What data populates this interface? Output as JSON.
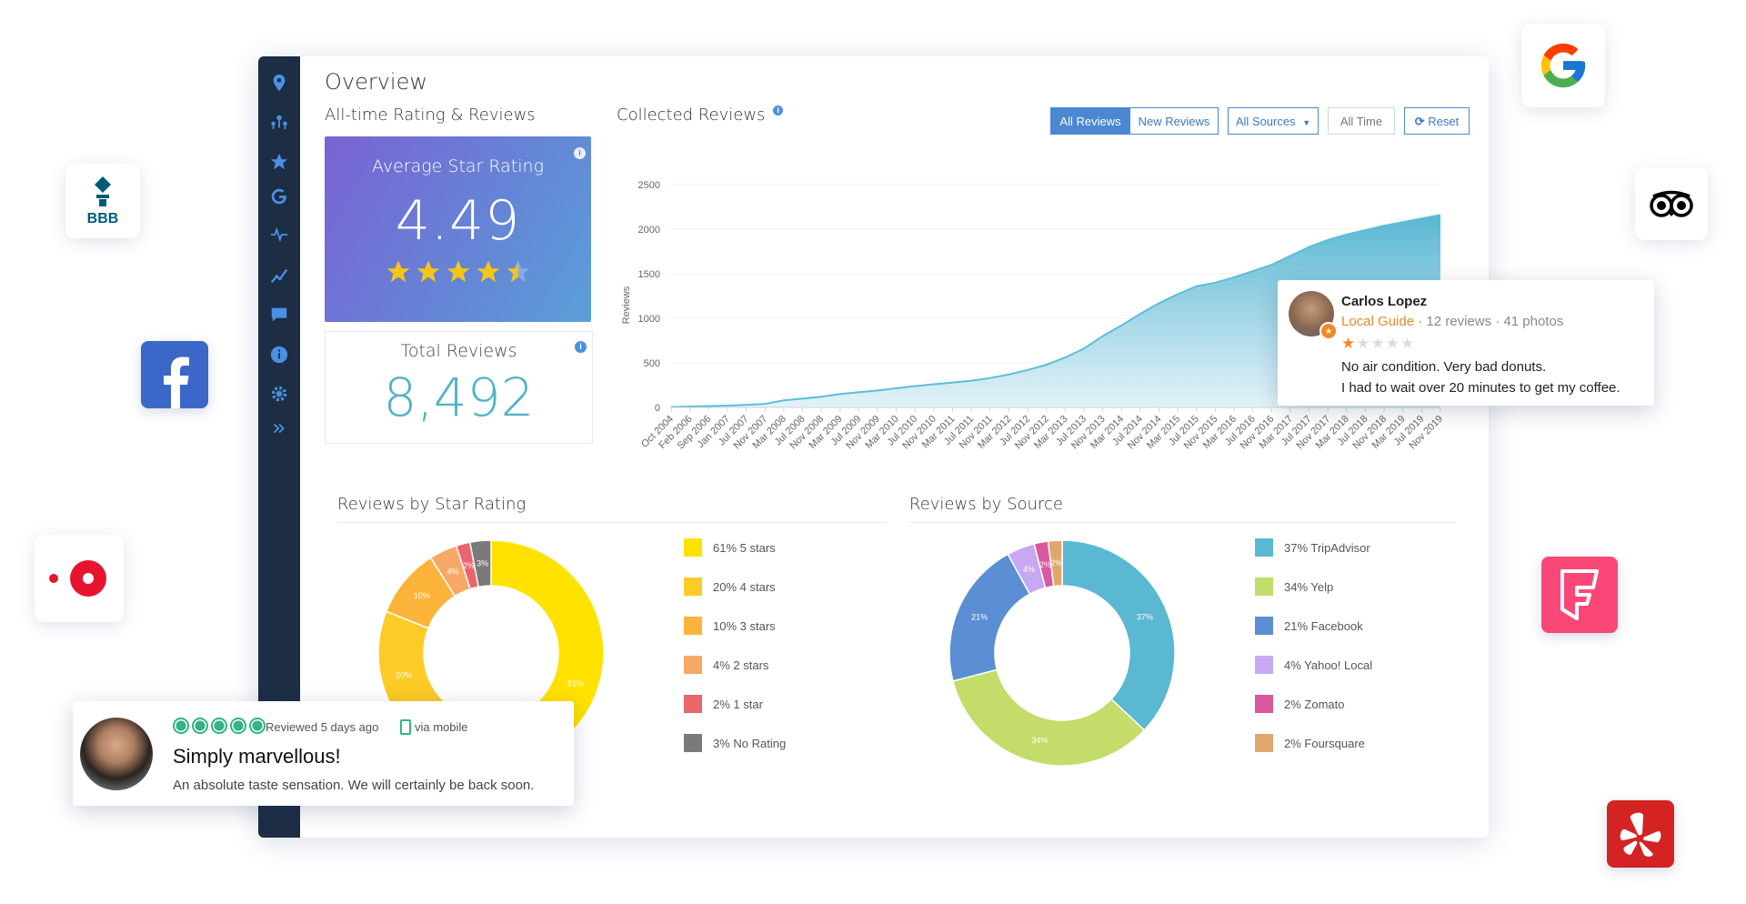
{
  "page": {
    "title": "Overview"
  },
  "sidebar": {
    "icons": [
      "map-pin-icon",
      "locations-icon",
      "star-icon",
      "google-icon",
      "pulse-icon",
      "trend-icon",
      "chat-icon",
      "info-icon",
      "gear-icon",
      "expand-icon"
    ]
  },
  "rating_section": {
    "title": "All-time Rating & Reviews",
    "average_label": "Average Star Rating",
    "average_value": "4.49",
    "stars_value": 4.49,
    "total_label": "Total Reviews",
    "total_value": "8,492"
  },
  "collected": {
    "title": "Collected Reviews",
    "buttons": {
      "all_reviews": "All Reviews",
      "new_reviews": "New Reviews",
      "all_sources": "All Sources",
      "all_time": "All Time",
      "reset": "Reset"
    }
  },
  "star_section": {
    "title": "Reviews by Star Rating"
  },
  "source_section": {
    "title": "Reviews by Source"
  },
  "chart_data": [
    {
      "type": "area",
      "title": "Collected Reviews",
      "ylabel": "Reviews",
      "ylim": [
        0,
        2500
      ],
      "yticks": [
        2500,
        2000,
        1500,
        1000,
        500,
        0
      ],
      "xticks": [
        "Oct 2004",
        "Feb 2006",
        "Sep 2006",
        "Jan 2007",
        "Jul 2007",
        "Nov 2007",
        "Mar 2008",
        "Jul 2008",
        "Nov 2008",
        "Mar 2009",
        "Jul 2009",
        "Nov 2009",
        "Mar 2010",
        "Jul 2010",
        "Nov 2010",
        "Mar 2011",
        "Jul 2011",
        "Nov 2011",
        "Mar 2012",
        "Jul 2012",
        "Nov 2012",
        "Mar 2013",
        "Jul 2013",
        "Nov 2013",
        "Mar 2014",
        "Jul 2014",
        "Nov 2014",
        "Mar 2015",
        "Jul 2015",
        "Nov 2015",
        "Mar 2016",
        "Jul 2016",
        "Nov 2016",
        "Mar 2017",
        "Jul 2017",
        "Nov 2017",
        "Mar 2018",
        "Jul 2018",
        "Nov 2018",
        "Mar 2019",
        "Jul 2019",
        "Nov 2019"
      ],
      "values": [
        5,
        10,
        15,
        20,
        30,
        40,
        80,
        100,
        120,
        150,
        170,
        190,
        215,
        240,
        260,
        280,
        300,
        330,
        370,
        420,
        480,
        560,
        660,
        800,
        920,
        1050,
        1170,
        1270,
        1360,
        1400,
        1460,
        1530,
        1600,
        1700,
        1800,
        1880,
        1940,
        1990,
        2040,
        2080,
        2120,
        2160
      ],
      "color": "#5bbfd6"
    },
    {
      "type": "pie",
      "title": "Reviews by Star Rating",
      "labels": [
        "5 stars",
        "4 stars",
        "3 stars",
        "2 stars",
        "1 star",
        "No Rating"
      ],
      "values": [
        61,
        20,
        10,
        4,
        2,
        3
      ],
      "slice_labels": [
        "61%",
        "20%",
        "10%",
        "4%",
        "2%",
        "3%"
      ],
      "legend": [
        "61% 5 stars",
        "20% 4 stars",
        "10% 3 stars",
        "4% 2 stars",
        "2% 1 star",
        "3% No Rating"
      ],
      "colors": [
        "#ffe200",
        "#fccb26",
        "#fbb33a",
        "#f8a866",
        "#e8666c",
        "#7a7a7a"
      ]
    },
    {
      "type": "pie",
      "title": "Reviews by Source",
      "labels": [
        "TripAdvisor",
        "Yelp",
        "Facebook",
        "Yahoo! Local",
        "Zomato",
        "Foursquare"
      ],
      "values": [
        37,
        34,
        21,
        4,
        2,
        2
      ],
      "slice_labels": [
        "37%",
        "34%",
        "21%",
        "4%",
        "2%",
        "2%"
      ],
      "legend": [
        "37% TripAdvisor",
        "34% Yelp",
        "21% Facebook",
        "4% Yahoo! Local",
        "2% Zomato",
        "2% Foursquare"
      ],
      "colors": [
        "#5bb8d2",
        "#c3dc6a",
        "#5b8ed2",
        "#c7a9f3",
        "#d9589e",
        "#e0a76c"
      ]
    }
  ],
  "review_carlos": {
    "name": "Carlos Lopez",
    "badge": "Local Guide",
    "meta": "· 12 reviews · 41 photos",
    "rating": 1,
    "line1": "No air condition. Very bad donuts.",
    "line2": "I had to wait over 20 minutes to get my coffee."
  },
  "review_tripadvisor": {
    "reviewed": "Reviewed 5 days ago",
    "via": "via mobile",
    "title": "Simply marvellous!",
    "body": "An absolute taste sensation. We will certainly be back soon."
  },
  "floating": {
    "bbb_text": "BBB"
  }
}
